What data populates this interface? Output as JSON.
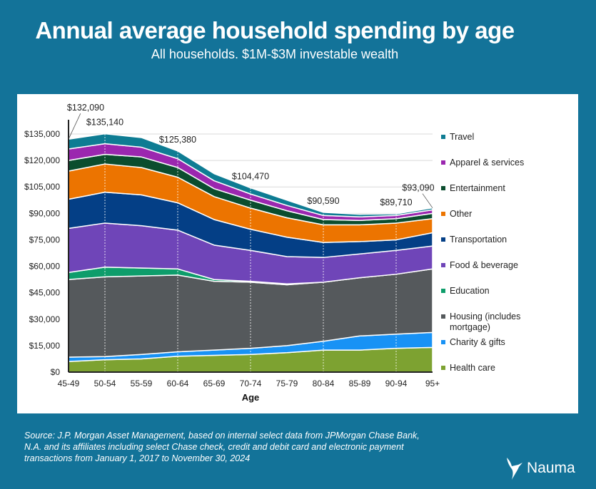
{
  "title": "Annual average household spending by age",
  "subtitle": "All households. $1M-$3M investable wealth",
  "source": "Source: J.P. Morgan Asset Management, based on internal select data from JPMorgan Chase Bank, N.A. and its affiliates including select Chase check, credit and debit card and electronic payment transactions from January 1, 2017 to November 30, 2024",
  "brand": "Nauma",
  "chart_data": {
    "type": "area",
    "stacked": true,
    "xlabel": "Age",
    "ylabel": "",
    "ylim": [
      0,
      135000
    ],
    "yticks": [
      0,
      15000,
      30000,
      45000,
      60000,
      75000,
      90000,
      105000,
      120000,
      135000
    ],
    "ytick_labels": [
      "$0",
      "$15,000",
      "$30,000",
      "$45,000",
      "$60,000",
      "$75,000",
      "$90,000",
      "$105,000",
      "$120,000",
      "$135,000"
    ],
    "categories": [
      "45-49",
      "50-54",
      "55-59",
      "60-64",
      "65-69",
      "70-74",
      "75-79",
      "80-84",
      "85-89",
      "90-94",
      "95+"
    ],
    "legend_position": "right",
    "series": [
      {
        "name": "Health care",
        "color": "#7da231",
        "values": [
          6000,
          7000,
          7500,
          9000,
          9500,
          10000,
          11000,
          12500,
          12500,
          13500,
          14000
        ]
      },
      {
        "name": "Charity & gifts",
        "color": "#1892f5",
        "values": [
          2500,
          1800,
          2500,
          2500,
          3000,
          3500,
          4000,
          5000,
          8000,
          8000,
          8500
        ]
      },
      {
        "name": "Housing (includes mortgage)",
        "color": "#55595c",
        "values": [
          44000,
          45200,
          44500,
          43500,
          39000,
          37500,
          34500,
          33500,
          33000,
          34000,
          36000
        ]
      },
      {
        "name": "Education",
        "color": "#0e9d6b",
        "values": [
          4000,
          5500,
          4500,
          3500,
          1000,
          500,
          500,
          0,
          0,
          0,
          0
        ]
      },
      {
        "name": "Food & beverage",
        "color": "#6f45b8",
        "values": [
          25000,
          25000,
          24000,
          22000,
          19500,
          17500,
          15500,
          14000,
          13500,
          13500,
          13000
        ]
      },
      {
        "name": "Transportation",
        "color": "#043f86",
        "values": [
          16500,
          17500,
          17500,
          15500,
          14500,
          12000,
          11000,
          8500,
          7000,
          6000,
          7500
        ]
      },
      {
        "name": "Other",
        "color": "#ec7400",
        "values": [
          16000,
          16000,
          15500,
          14500,
          13000,
          12000,
          11000,
          10000,
          9500,
          9500,
          8000
        ]
      },
      {
        "name": "Entertainment",
        "color": "#0b4d2e",
        "values": [
          6000,
          5500,
          6000,
          5500,
          4500,
          4500,
          4000,
          3000,
          2500,
          2500,
          3000
        ]
      },
      {
        "name": "Apparel & services",
        "color": "#9b27af",
        "values": [
          6500,
          6000,
          5500,
          5000,
          4500,
          3500,
          3000,
          2300,
          2000,
          1800,
          2000
        ]
      },
      {
        "name": "Travel",
        "color": "#0e7c93",
        "values": [
          5590,
          5640,
          5500,
          4380,
          4000,
          3470,
          3000,
          1790,
          1500,
          910,
          1090
        ]
      }
    ],
    "legend": [
      "Travel",
      "Apparel & services",
      "Entertainment",
      "Other",
      "Transportation",
      "Food & beverage",
      "Education",
      "Housing (includes mortgage)",
      "Charity & gifts",
      "Health care"
    ],
    "total_labels": [
      {
        "category": "45-49",
        "text": "$132,090",
        "value": 132090
      },
      {
        "category": "50-54",
        "text": "$135,140",
        "value": 135140
      },
      {
        "category": "60-64",
        "text": "$125,380",
        "value": 125380
      },
      {
        "category": "70-74",
        "text": "$104,470",
        "value": 104470
      },
      {
        "category": "80-84",
        "text": "$90,590",
        "value": 90590
      },
      {
        "category": "90-94",
        "text": "$89,710",
        "value": 89710
      },
      {
        "category": "95+",
        "text": "$93,090",
        "value": 93090
      }
    ]
  }
}
